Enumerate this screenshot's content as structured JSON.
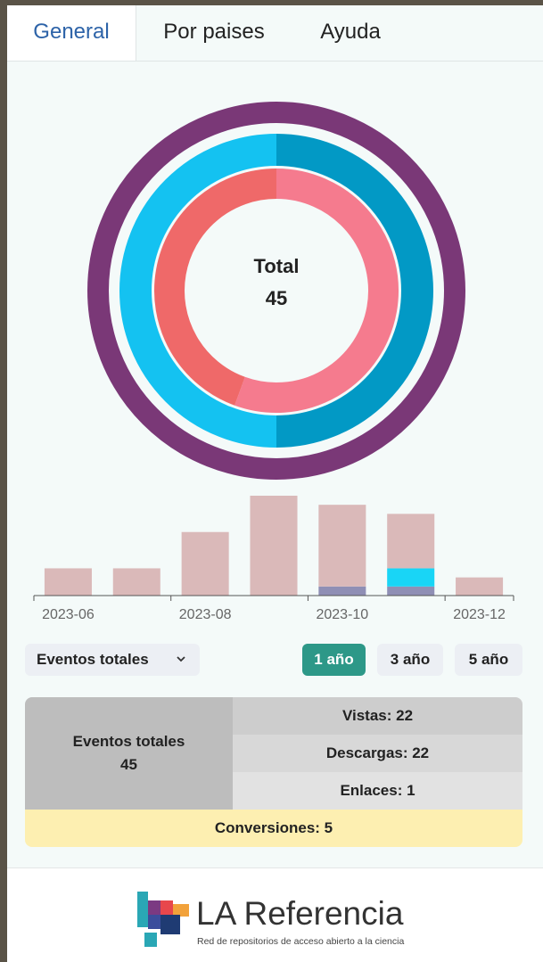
{
  "tabs": [
    "General",
    "Por paises",
    "Ayuda"
  ],
  "chart_data": [
    {
      "type": "donut",
      "center_label": "Total",
      "center_value": 45,
      "rings": [
        {
          "values": [
            45
          ],
          "colors": [
            "#7a3877"
          ]
        },
        {
          "values": [
            22,
            22
          ],
          "colors": [
            "#0299c5",
            "#14c2f1"
          ]
        },
        {
          "values": [
            25,
            20
          ],
          "colors": [
            "#f57b8e",
            "#ef6969"
          ]
        }
      ]
    },
    {
      "type": "bar",
      "stacked": true,
      "categories": [
        "2023-06",
        null,
        "2023-08",
        null,
        "2023-10",
        null,
        "2023-12"
      ],
      "series": [
        {
          "color": "#8f8fb5",
          "values": [
            0,
            0,
            0,
            0,
            1,
            1,
            0
          ]
        },
        {
          "color": "#19d5f6",
          "values": [
            0,
            0,
            0,
            0,
            0,
            2,
            0
          ]
        },
        {
          "color": "#dab9b9",
          "values": [
            3,
            3,
            7,
            11,
            9,
            6,
            2
          ]
        }
      ],
      "ylim": [
        0,
        11
      ]
    }
  ],
  "controls": {
    "dropdown": "Eventos totales",
    "buttons": [
      "1 año",
      "3 año",
      "5 año"
    ],
    "active_button": 0
  },
  "summary": {
    "total_label": "Eventos totales",
    "total_value": 45,
    "rows": [
      "Vistas: 22",
      "Descargas: 22",
      "Enlaces: 1"
    ],
    "footer": "Conversiones: 5"
  },
  "footer": {
    "brand": "LA Referencia",
    "tagline": "Red de repositorios de acceso abierto a la ciencia"
  }
}
